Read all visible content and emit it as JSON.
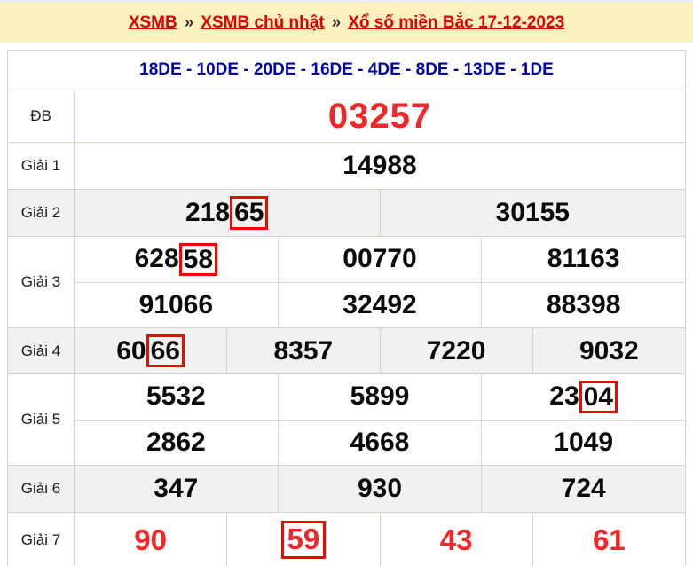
{
  "breadcrumb": {
    "separator": "»",
    "links": [
      {
        "label": "XSMB"
      },
      {
        "label": "XSMB chủ nhật"
      },
      {
        "label": "Xổ số miền Bắc 17-12-2023"
      }
    ]
  },
  "de_line": "18DE - 10DE - 20DE - 16DE - 4DE - 8DE - 13DE - 1DE",
  "results": {
    "db": {
      "label": "ĐB",
      "value": "03257"
    },
    "g1": {
      "label": "Giải 1",
      "value": "14988"
    },
    "g2": {
      "label": "Giải 2",
      "cell1": {
        "pre": "218",
        "boxed": "65"
      },
      "cell2": "30155"
    },
    "g3": {
      "label": "Giải 3",
      "row1": {
        "cell1": {
          "pre": "628",
          "boxed": "58"
        },
        "cell2": "00770",
        "cell3": "81163"
      },
      "row2": [
        "91066",
        "32492",
        "88398"
      ]
    },
    "g4": {
      "label": "Giải 4",
      "cell1": {
        "pre": "60",
        "boxed": "66"
      },
      "cell2": "8357",
      "cell3": "7220",
      "cell4": "9032"
    },
    "g5": {
      "label": "Giải 5",
      "row1": {
        "cell1": "5532",
        "cell2": "5899",
        "cell3": {
          "pre": "23",
          "boxed": "04"
        }
      },
      "row2": [
        "2862",
        "4668",
        "1049"
      ]
    },
    "g6": {
      "label": "Giải 6",
      "cells": [
        "347",
        "930",
        "724"
      ]
    },
    "g7": {
      "label": "Giải 7",
      "cell1": "90",
      "cell2_boxed": "59",
      "cell3": "43",
      "cell4": "61"
    }
  },
  "colors": {
    "header_background": "#fdf1bd",
    "breadcrumb_link": "#e10000",
    "de_line_text": "#0000a3",
    "highlight_number": "#f22626",
    "highlight_box_border": "#ff0000",
    "alternate_row": "#f1f1f1",
    "table_border": "#d9d2c5"
  }
}
